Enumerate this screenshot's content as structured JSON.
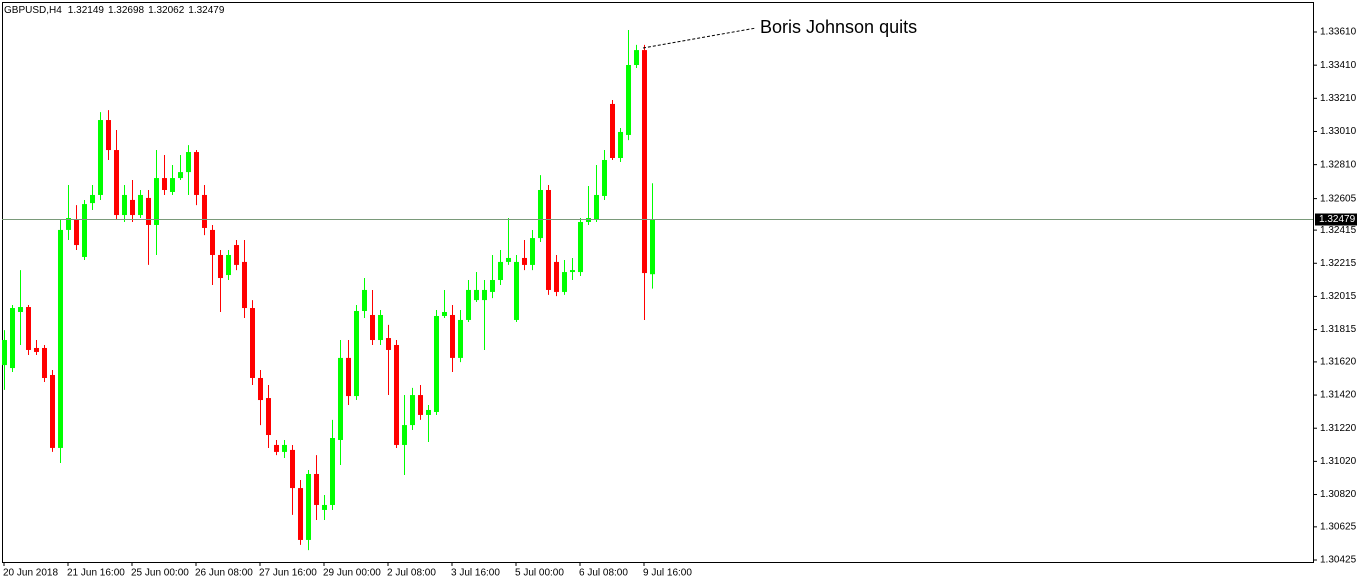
{
  "chart_data": {
    "type": "candlestick",
    "symbol": "GBPUSD,H4",
    "quote": [
      1.32149,
      1.32698,
      1.32062,
      1.32479
    ],
    "annotation": "Boris Johnson quits",
    "current_price": 1.32479,
    "up_color": "#00ff00",
    "down_color": "#ff0000",
    "categories": [
      "20 Jun 2018",
      null,
      null,
      null,
      null,
      null,
      null,
      null,
      "21 Jun 16:00",
      null,
      null,
      null,
      null,
      null,
      null,
      null,
      "25 Jun 00:00",
      null,
      null,
      null,
      null,
      null,
      null,
      null,
      "26 Jun 08:00",
      null,
      null,
      null,
      null,
      null,
      null,
      null,
      "27 Jun 16:00",
      null,
      null,
      null,
      null,
      null,
      null,
      null,
      "29 Jun 00:00",
      null,
      null,
      null,
      null,
      null,
      null,
      null,
      "2 Jul 08:00",
      null,
      null,
      null,
      null,
      null,
      null,
      null,
      "3 Jul 16:00",
      null,
      null,
      null,
      null,
      null,
      null,
      null,
      "5 Jul 00:00",
      null,
      null,
      null,
      null,
      null,
      null,
      null,
      "6 Jul 08:00",
      null,
      null,
      null,
      null,
      null,
      null,
      null,
      "9 Jul 16:00",
      null
    ],
    "open": [
      1.31601,
      1.31583,
      1.31921,
      1.31951,
      1.31704,
      1.31704,
      1.31541,
      1.31101,
      1.32416,
      1.32476,
      1.32253,
      1.32578,
      1.32627,
      1.33079,
      1.32898,
      1.32506,
      1.32597,
      1.32506,
      1.32609,
      1.32446,
      1.32729,
      1.32645,
      1.32729,
      1.32765,
      1.32886,
      1.32627,
      1.32416,
      1.32265,
      1.32144,
      1.32325,
      1.32223,
      1.31945,
      1.31523,
      1.31402,
      1.31119,
      1.31077,
      1.31089,
      1.30859,
      1.30546,
      1.30944,
      1.30727,
      1.30757,
      1.31149,
      1.31644,
      1.31414,
      1.31927,
      1.31903,
      1.31752,
      1.31764,
      1.31722,
      1.31119,
      1.31239,
      1.3142,
      1.313,
      1.31318,
      1.31897,
      1.31903,
      1.31644,
      1.31873,
      1.31993,
      1.31993,
      1.32042,
      1.32114,
      1.32223,
      1.31873,
      1.32247,
      1.32205,
      1.32367,
      1.32657,
      1.32223,
      1.32042,
      1.32162,
      1.32162,
      1.32464,
      1.32476,
      1.32621,
      1.33176,
      1.3285,
      1.32989,
      1.33411,
      1.33501,
      1.32149
    ],
    "high": [
      1.31812,
      1.31963,
      1.32174,
      1.31963,
      1.31752,
      1.31722,
      1.31571,
      1.32476,
      1.32687,
      1.32566,
      1.32597,
      1.32687,
      1.33127,
      1.33139,
      1.33019,
      1.32687,
      1.32717,
      1.32657,
      1.32657,
      1.32898,
      1.32868,
      1.32808,
      1.32868,
      1.32928,
      1.32898,
      1.32687,
      1.32446,
      1.32295,
      1.32295,
      1.32355,
      1.32355,
      1.31993,
      1.31571,
      1.31481,
      1.31149,
      1.31149,
      1.31119,
      1.30908,
      1.30968,
      1.31058,
      1.30817,
      1.3127,
      1.31752,
      1.31752,
      1.31963,
      1.32126,
      1.32054,
      1.31933,
      1.31843,
      1.31752,
      1.3142,
      1.31463,
      1.31481,
      1.3136,
      1.31933,
      1.32054,
      1.31963,
      1.31933,
      1.32114,
      1.32162,
      1.32114,
      1.32265,
      1.32295,
      1.32488,
      1.32265,
      1.32355,
      1.32416,
      1.32747,
      1.32687,
      1.32265,
      1.32235,
      1.32247,
      1.32488,
      1.32681,
      1.32808,
      1.32898,
      1.332,
      1.33031,
      1.33622,
      1.33532,
      1.33532,
      1.32698
    ],
    "low": [
      1.31451,
      1.31559,
      1.31722,
      1.31662,
      1.31662,
      1.31499,
      1.31077,
      1.3101,
      1.32355,
      1.32295,
      1.32235,
      1.32536,
      1.32597,
      1.32838,
      1.32476,
      1.32464,
      1.32464,
      1.32488,
      1.32205,
      1.32265,
      1.32627,
      1.32627,
      1.32717,
      1.32627,
      1.32566,
      1.32385,
      1.32084,
      1.31921,
      1.32114,
      1.32174,
      1.31885,
      1.31481,
      1.31239,
      1.31101,
      1.31058,
      1.3104,
      1.30697,
      1.30516,
      1.30485,
      1.30666,
      1.30666,
      1.30727,
      1.30998,
      1.3136,
      1.3139,
      1.31885,
      1.31722,
      1.31722,
      1.3142,
      1.31101,
      1.30938,
      1.31209,
      1.3127,
      1.31137,
      1.313,
      1.31885,
      1.31559,
      1.31619,
      1.31861,
      1.31981,
      1.31692,
      1.32005,
      1.32084,
      1.32205,
      1.31861,
      1.32174,
      1.32174,
      1.32343,
      1.32024,
      1.32017,
      1.32024,
      1.32114,
      1.32138,
      1.32446,
      1.32464,
      1.32597,
      1.32838,
      1.32826,
      1.32958,
      1.33393,
      1.31873,
      1.32062
    ],
    "close": [
      1.31752,
      1.31945,
      1.31951,
      1.31692,
      1.3168,
      1.31523,
      1.31101,
      1.32416,
      1.32488,
      1.32325,
      1.32572,
      1.32627,
      1.33079,
      1.32898,
      1.32506,
      1.32627,
      1.32506,
      1.32627,
      1.32446,
      1.32729,
      1.32657,
      1.32729,
      1.32765,
      1.32886,
      1.32627,
      1.32428,
      1.32265,
      1.32126,
      1.32265,
      1.32205,
      1.31945,
      1.31523,
      1.3139,
      1.31179,
      1.31077,
      1.31119,
      1.30859,
      1.30546,
      1.30944,
      1.30757,
      1.30757,
      1.31161,
      1.31644,
      1.31414,
      1.31927,
      1.32054,
      1.31752,
      1.31903,
      1.31692,
      1.31119,
      1.31239,
      1.3142,
      1.313,
      1.3133,
      1.31897,
      1.31921,
      1.31644,
      1.31873,
      1.32054,
      1.32054,
      1.32054,
      1.32114,
      1.32223,
      1.32247,
      1.32223,
      1.32205,
      1.32367,
      1.32657,
      1.32054,
      1.32042,
      1.32162,
      1.32174,
      1.32464,
      1.32488,
      1.32627,
      1.32838,
      1.3285,
      1.33007,
      1.33411,
      1.33501,
      1.32156,
      1.32479
    ],
    "ylim": [
      1.30413,
      1.33791
    ],
    "yticks": [
      {
        "value": 1.3361,
        "label": "1.33610"
      },
      {
        "value": 1.3341,
        "label": "1.33410"
      },
      {
        "value": 1.3321,
        "label": "1.33210"
      },
      {
        "value": 1.3301,
        "label": "1.33010"
      },
      {
        "value": 1.3281,
        "label": "1.32810"
      },
      1.32605,
      1.32415,
      1.32215,
      1.32015,
      1.31815,
      {
        "value": 1.3162,
        "label": "1.31620"
      },
      {
        "value": 1.3142,
        "label": "1.31420"
      },
      {
        "value": 1.3122,
        "label": "1.31220"
      },
      {
        "value": 1.3102,
        "label": "1.31020"
      },
      {
        "value": 1.3082,
        "label": "1.30820"
      },
      1.30625,
      1.30425
    ]
  }
}
